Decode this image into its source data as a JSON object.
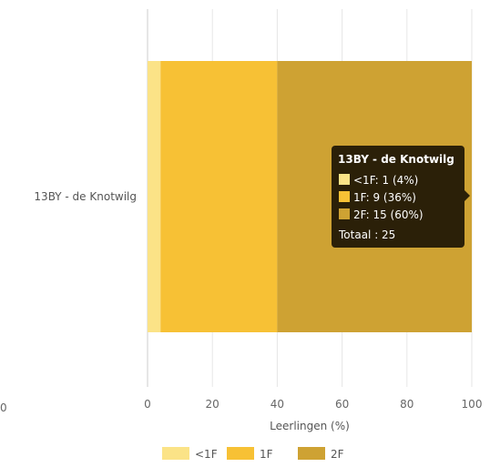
{
  "chart_data": {
    "type": "bar",
    "orientation": "horizontal",
    "stacked": true,
    "categories": [
      "13BY - de Knotwilg"
    ],
    "series": [
      {
        "name": "<1F",
        "values": [
          4
        ],
        "color": "#fbe387"
      },
      {
        "name": "1F",
        "values": [
          36
        ],
        "color": "#f7c135"
      },
      {
        "name": "2F",
        "values": [
          60
        ],
        "color": "#cea233"
      }
    ],
    "xlabel": "Leerlingen (%)",
    "xlim": [
      0,
      100
    ],
    "xticks": [
      "0",
      "20",
      "40",
      "60",
      "80",
      "100"
    ],
    "grid": true,
    "legend_position": "bottom",
    "stray_label": "0"
  },
  "tooltip": {
    "title": "13BY - de Knotwilg",
    "lines": [
      {
        "text": "<1F: 1 (4%)",
        "color": "#fbe387"
      },
      {
        "text": "1F: 9 (36%)",
        "color": "#f7c135"
      },
      {
        "text": "2F: 15 (60%)",
        "color": "#cea233"
      }
    ],
    "total": "Totaal : 25",
    "background": "#2b2008"
  }
}
